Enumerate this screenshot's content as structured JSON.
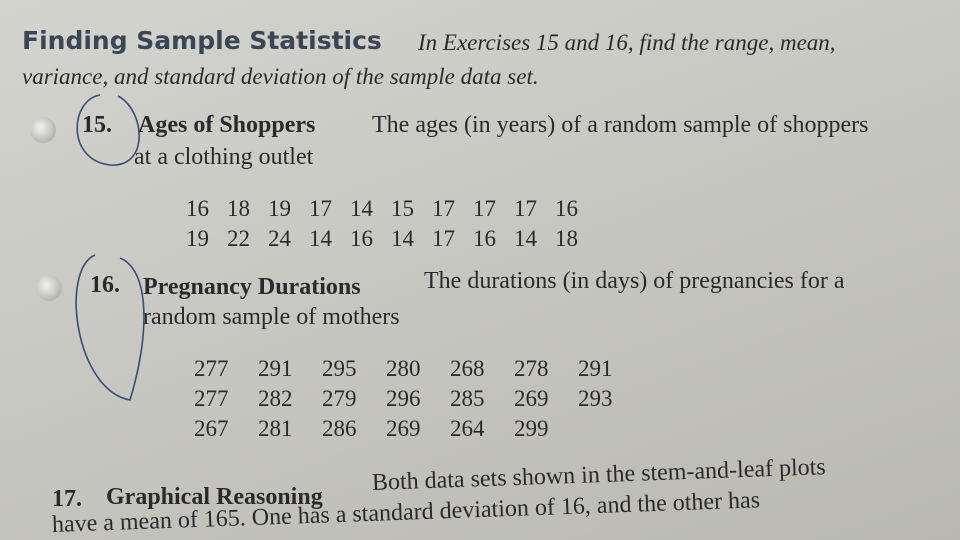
{
  "header": {
    "title": "Finding Sample Statistics",
    "instructions_line1": "In Exercises 15 and 16, find the range, mean,",
    "instructions_line2": "variance, and standard deviation of the sample data set."
  },
  "exercises": [
    {
      "number": "15.",
      "title": "Ages of Shoppers",
      "text_line1": "The ages (in years) of a random sample of shoppers",
      "text_line2": "at a clothing outlet",
      "data": [
        [
          16,
          18,
          19,
          17,
          14,
          15,
          17,
          17,
          17,
          16
        ],
        [
          19,
          22,
          24,
          14,
          16,
          14,
          17,
          16,
          14,
          18
        ]
      ]
    },
    {
      "number": "16.",
      "title": "Pregnancy Durations",
      "text_line1": "The durations (in days) of pregnancies for a",
      "text_line2": "random sample of mothers",
      "data": [
        [
          277,
          291,
          295,
          280,
          268,
          278,
          291
        ],
        [
          277,
          282,
          279,
          296,
          285,
          269,
          293
        ],
        [
          267,
          281,
          286,
          269,
          264,
          299
        ]
      ]
    },
    {
      "number": "17.",
      "title": "Graphical Reasoning",
      "text_line1": "Both data sets shown in the stem-and-leaf plots",
      "text_line2": "have a mean of 165. One has a standard deviation of 16, and the other has"
    }
  ]
}
